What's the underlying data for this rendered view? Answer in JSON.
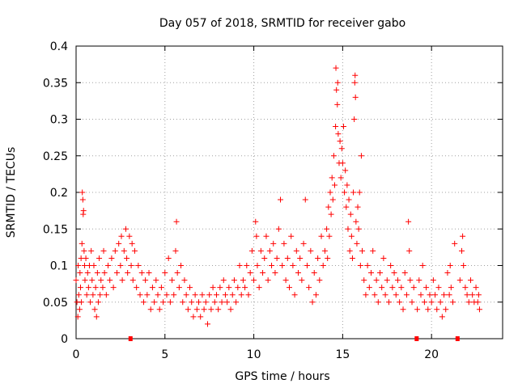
{
  "chart_data": {
    "type": "scatter",
    "title": "Day 057 of 2018, SRMTID for receiver gabo",
    "xlabel": "GPS time / hours",
    "ylabel": "SRMTID / TECUs",
    "xlim": [
      0,
      24
    ],
    "ylim": [
      0,
      0.4
    ],
    "xticks": [
      0,
      5,
      10,
      15,
      20
    ],
    "yticks": [
      0,
      0.05,
      0.1,
      0.15,
      0.2,
      0.25,
      0.3,
      0.35,
      0.4
    ],
    "xtick_labels": [
      "0",
      "5",
      "10",
      "15",
      "20"
    ],
    "ytick_labels": [
      "0",
      "0.05",
      "0.1",
      "0.15",
      "0.2",
      "0.25",
      "0.3",
      "0.35",
      "0.4"
    ],
    "grid": true,
    "marker": "+",
    "color": "#ff0000",
    "gap_markers": [
      {
        "x0": 2.95,
        "x1": 3.05
      },
      {
        "x0": 19.05,
        "x1": 19.15
      },
      {
        "x0": 21.35,
        "x1": 21.55
      }
    ],
    "series": [
      {
        "name": "SRMTID",
        "points": [
          [
            0.0,
            0.08
          ],
          [
            0.05,
            0.05
          ],
          [
            0.1,
            0.03
          ],
          [
            0.12,
            0.1
          ],
          [
            0.15,
            0.06
          ],
          [
            0.2,
            0.04
          ],
          [
            0.22,
            0.09
          ],
          [
            0.25,
            0.07
          ],
          [
            0.28,
            0.11
          ],
          [
            0.3,
            0.05
          ],
          [
            0.33,
            0.13
          ],
          [
            0.35,
            0.2
          ],
          [
            0.38,
            0.19
          ],
          [
            0.4,
            0.17
          ],
          [
            0.42,
            0.175
          ],
          [
            0.45,
            0.12
          ],
          [
            0.48,
            0.1
          ],
          [
            0.5,
            0.08
          ],
          [
            0.55,
            0.11
          ],
          [
            0.6,
            0.06
          ],
          [
            0.65,
            0.09
          ],
          [
            0.7,
            0.07
          ],
          [
            0.75,
            0.1
          ],
          [
            0.8,
            0.05
          ],
          [
            0.85,
            0.12
          ],
          [
            0.9,
            0.08
          ],
          [
            0.95,
            0.06
          ],
          [
            1.0,
            0.1
          ],
          [
            1.05,
            0.04
          ],
          [
            1.1,
            0.07
          ],
          [
            1.15,
            0.03
          ],
          [
            1.2,
            0.09
          ],
          [
            1.25,
            0.05
          ],
          [
            1.3,
            0.11
          ],
          [
            1.35,
            0.06
          ],
          [
            1.4,
            0.08
          ],
          [
            1.5,
            0.07
          ],
          [
            1.55,
            0.12
          ],
          [
            1.6,
            0.09
          ],
          [
            1.7,
            0.06
          ],
          [
            1.8,
            0.1
          ],
          [
            1.9,
            0.08
          ],
          [
            2.0,
            0.11
          ],
          [
            2.1,
            0.07
          ],
          [
            2.2,
            0.12
          ],
          [
            2.3,
            0.09
          ],
          [
            2.4,
            0.13
          ],
          [
            2.5,
            0.1
          ],
          [
            2.55,
            0.14
          ],
          [
            2.6,
            0.08
          ],
          [
            2.7,
            0.12
          ],
          [
            2.8,
            0.15
          ],
          [
            2.85,
            0.11
          ],
          [
            2.9,
            0.09
          ],
          [
            3.0,
            0.14
          ],
          [
            3.1,
            0.1
          ],
          [
            3.15,
            0.13
          ],
          [
            3.2,
            0.08
          ],
          [
            3.3,
            0.12
          ],
          [
            3.4,
            0.07
          ],
          [
            3.5,
            0.1
          ],
          [
            3.6,
            0.06
          ],
          [
            3.7,
            0.09
          ],
          [
            3.8,
            0.05
          ],
          [
            3.9,
            0.08
          ],
          [
            4.0,
            0.06
          ],
          [
            4.1,
            0.09
          ],
          [
            4.2,
            0.04
          ],
          [
            4.3,
            0.07
          ],
          [
            4.4,
            0.05
          ],
          [
            4.5,
            0.08
          ],
          [
            4.6,
            0.06
          ],
          [
            4.7,
            0.04
          ],
          [
            4.8,
            0.07
          ],
          [
            4.9,
            0.05
          ],
          [
            5.0,
            0.09
          ],
          [
            5.1,
            0.06
          ],
          [
            5.2,
            0.11
          ],
          [
            5.3,
            0.05
          ],
          [
            5.4,
            0.08
          ],
          [
            5.5,
            0.06
          ],
          [
            5.6,
            0.12
          ],
          [
            5.65,
            0.16
          ],
          [
            5.7,
            0.09
          ],
          [
            5.8,
            0.07
          ],
          [
            5.9,
            0.1
          ],
          [
            6.0,
            0.05
          ],
          [
            6.1,
            0.08
          ],
          [
            6.2,
            0.06
          ],
          [
            6.3,
            0.04
          ],
          [
            6.4,
            0.07
          ],
          [
            6.5,
            0.05
          ],
          [
            6.6,
            0.03
          ],
          [
            6.7,
            0.06
          ],
          [
            6.8,
            0.04
          ],
          [
            6.9,
            0.05
          ],
          [
            7.0,
            0.03
          ],
          [
            7.1,
            0.06
          ],
          [
            7.2,
            0.04
          ],
          [
            7.3,
            0.05
          ],
          [
            7.4,
            0.02
          ],
          [
            7.5,
            0.06
          ],
          [
            7.6,
            0.04
          ],
          [
            7.7,
            0.07
          ],
          [
            7.8,
            0.05
          ],
          [
            7.9,
            0.06
          ],
          [
            8.0,
            0.04
          ],
          [
            8.1,
            0.07
          ],
          [
            8.2,
            0.05
          ],
          [
            8.3,
            0.08
          ],
          [
            8.4,
            0.06
          ],
          [
            8.5,
            0.05
          ],
          [
            8.6,
            0.07
          ],
          [
            8.7,
            0.04
          ],
          [
            8.8,
            0.06
          ],
          [
            8.9,
            0.08
          ],
          [
            9.0,
            0.05
          ],
          [
            9.1,
            0.07
          ],
          [
            9.2,
            0.1
          ],
          [
            9.3,
            0.06
          ],
          [
            9.4,
            0.08
          ],
          [
            9.5,
            0.07
          ],
          [
            9.6,
            0.1
          ],
          [
            9.7,
            0.06
          ],
          [
            9.8,
            0.09
          ],
          [
            9.9,
            0.12
          ],
          [
            10.0,
            0.08
          ],
          [
            10.1,
            0.16
          ],
          [
            10.15,
            0.14
          ],
          [
            10.2,
            0.1
          ],
          [
            10.3,
            0.07
          ],
          [
            10.4,
            0.12
          ],
          [
            10.5,
            0.09
          ],
          [
            10.6,
            0.11
          ],
          [
            10.7,
            0.14
          ],
          [
            10.8,
            0.08
          ],
          [
            10.9,
            0.12
          ],
          [
            11.0,
            0.1
          ],
          [
            11.1,
            0.13
          ],
          [
            11.2,
            0.09
          ],
          [
            11.3,
            0.11
          ],
          [
            11.4,
            0.15
          ],
          [
            11.5,
            0.19
          ],
          [
            11.6,
            0.1
          ],
          [
            11.7,
            0.13
          ],
          [
            11.8,
            0.08
          ],
          [
            11.9,
            0.11
          ],
          [
            12.0,
            0.07
          ],
          [
            12.1,
            0.14
          ],
          [
            12.2,
            0.1
          ],
          [
            12.3,
            0.06
          ],
          [
            12.4,
            0.12
          ],
          [
            12.5,
            0.09
          ],
          [
            12.6,
            0.11
          ],
          [
            12.7,
            0.08
          ],
          [
            12.8,
            0.13
          ],
          [
            12.9,
            0.19
          ],
          [
            13.0,
            0.1
          ],
          [
            13.1,
            0.07
          ],
          [
            13.2,
            0.12
          ],
          [
            13.3,
            0.05
          ],
          [
            13.4,
            0.09
          ],
          [
            13.5,
            0.06
          ],
          [
            13.6,
            0.11
          ],
          [
            13.7,
            0.08
          ],
          [
            13.8,
            0.14
          ],
          [
            13.9,
            0.1
          ],
          [
            14.0,
            0.12
          ],
          [
            14.1,
            0.15
          ],
          [
            14.15,
            0.11
          ],
          [
            14.2,
            0.18
          ],
          [
            14.25,
            0.14
          ],
          [
            14.3,
            0.2
          ],
          [
            14.35,
            0.17
          ],
          [
            14.4,
            0.22
          ],
          [
            14.45,
            0.19
          ],
          [
            14.5,
            0.25
          ],
          [
            14.55,
            0.21
          ],
          [
            14.6,
            0.29
          ],
          [
            14.62,
            0.37
          ],
          [
            14.65,
            0.34
          ],
          [
            14.7,
            0.32
          ],
          [
            14.72,
            0.35
          ],
          [
            14.75,
            0.28
          ],
          [
            14.8,
            0.24
          ],
          [
            14.85,
            0.27
          ],
          [
            14.9,
            0.22
          ],
          [
            14.95,
            0.26
          ],
          [
            15.0,
            0.24
          ],
          [
            15.05,
            0.29
          ],
          [
            15.1,
            0.2
          ],
          [
            15.15,
            0.23
          ],
          [
            15.2,
            0.18
          ],
          [
            15.25,
            0.21
          ],
          [
            15.3,
            0.15
          ],
          [
            15.35,
            0.19
          ],
          [
            15.4,
            0.12
          ],
          [
            15.45,
            0.17
          ],
          [
            15.5,
            0.14
          ],
          [
            15.55,
            0.11
          ],
          [
            15.6,
            0.2
          ],
          [
            15.65,
            0.3
          ],
          [
            15.68,
            0.35
          ],
          [
            15.7,
            0.36
          ],
          [
            15.72,
            0.33
          ],
          [
            15.75,
            0.16
          ],
          [
            15.8,
            0.13
          ],
          [
            15.85,
            0.18
          ],
          [
            15.9,
            0.15
          ],
          [
            15.95,
            0.2
          ],
          [
            16.0,
            0.1
          ],
          [
            16.05,
            0.25
          ],
          [
            16.1,
            0.12
          ],
          [
            16.2,
            0.08
          ],
          [
            16.3,
            0.06
          ],
          [
            16.4,
            0.1
          ],
          [
            16.5,
            0.07
          ],
          [
            16.6,
            0.09
          ],
          [
            16.7,
            0.12
          ],
          [
            16.8,
            0.06
          ],
          [
            16.9,
            0.08
          ],
          [
            17.0,
            0.05
          ],
          [
            17.1,
            0.09
          ],
          [
            17.2,
            0.07
          ],
          [
            17.3,
            0.11
          ],
          [
            17.4,
            0.06
          ],
          [
            17.5,
            0.08
          ],
          [
            17.6,
            0.05
          ],
          [
            17.7,
            0.1
          ],
          [
            17.8,
            0.07
          ],
          [
            17.9,
            0.09
          ],
          [
            18.0,
            0.06
          ],
          [
            18.1,
            0.08
          ],
          [
            18.2,
            0.05
          ],
          [
            18.3,
            0.07
          ],
          [
            18.4,
            0.04
          ],
          [
            18.5,
            0.09
          ],
          [
            18.6,
            0.06
          ],
          [
            18.7,
            0.16
          ],
          [
            18.75,
            0.12
          ],
          [
            18.8,
            0.08
          ],
          [
            18.9,
            0.05
          ],
          [
            19.0,
            0.07
          ],
          [
            19.2,
            0.04
          ],
          [
            19.3,
            0.08
          ],
          [
            19.4,
            0.06
          ],
          [
            19.5,
            0.1
          ],
          [
            19.6,
            0.05
          ],
          [
            19.7,
            0.07
          ],
          [
            19.8,
            0.04
          ],
          [
            19.9,
            0.06
          ],
          [
            20.0,
            0.05
          ],
          [
            20.1,
            0.08
          ],
          [
            20.2,
            0.06
          ],
          [
            20.3,
            0.04
          ],
          [
            20.4,
            0.07
          ],
          [
            20.5,
            0.05
          ],
          [
            20.6,
            0.03
          ],
          [
            20.7,
            0.06
          ],
          [
            20.8,
            0.04
          ],
          [
            20.9,
            0.09
          ],
          [
            21.0,
            0.06
          ],
          [
            21.05,
            0.1
          ],
          [
            21.1,
            0.07
          ],
          [
            21.2,
            0.05
          ],
          [
            21.3,
            0.13
          ],
          [
            21.6,
            0.08
          ],
          [
            21.7,
            0.12
          ],
          [
            21.75,
            0.14
          ],
          [
            21.8,
            0.1
          ],
          [
            21.9,
            0.07
          ],
          [
            22.0,
            0.06
          ],
          [
            22.1,
            0.05
          ],
          [
            22.2,
            0.08
          ],
          [
            22.3,
            0.06
          ],
          [
            22.4,
            0.05
          ],
          [
            22.5,
            0.07
          ],
          [
            22.6,
            0.05
          ],
          [
            22.65,
            0.06
          ],
          [
            22.7,
            0.04
          ]
        ]
      }
    ]
  }
}
